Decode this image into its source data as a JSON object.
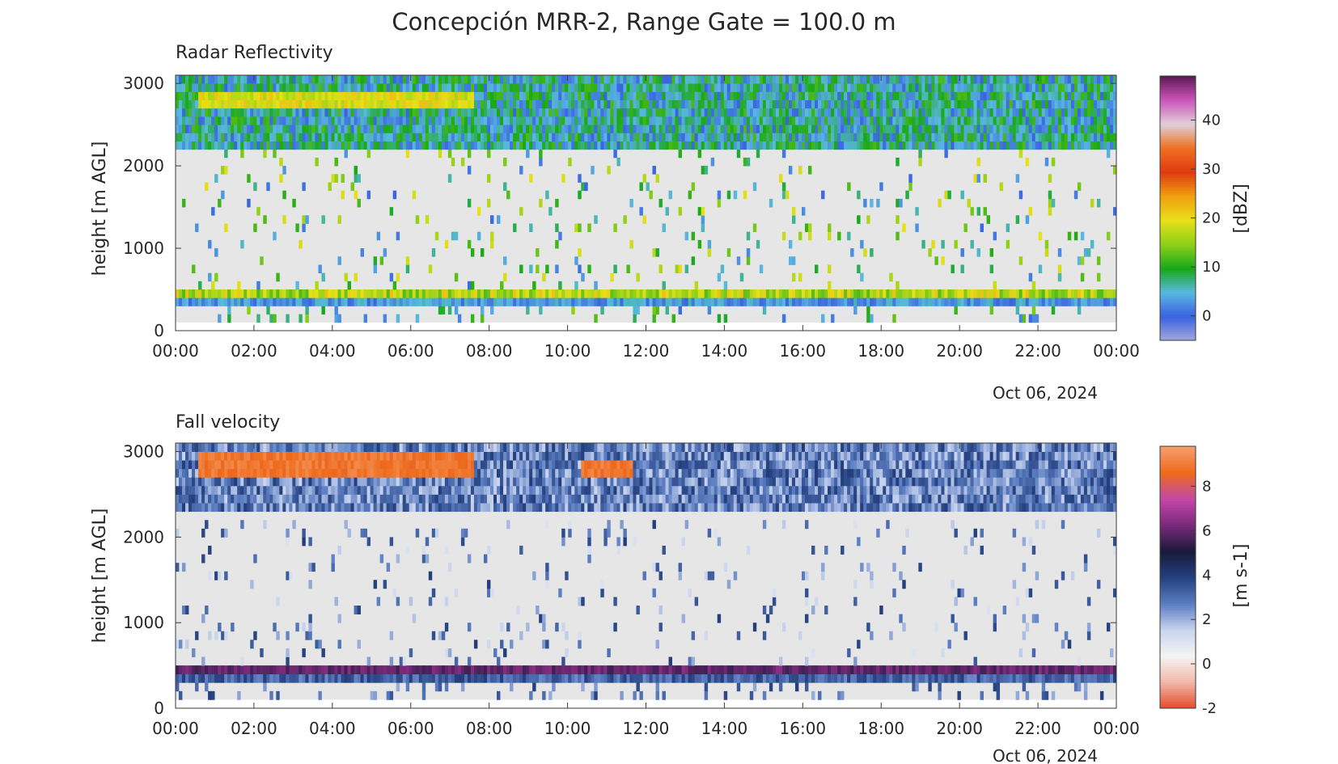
{
  "figure": {
    "title": "Concepción MRR-2, Range Gate = 100.0 m"
  },
  "chart_data": [
    {
      "type": "heatmap",
      "title": "Radar Reflectivity",
      "xlabel": "",
      "ylabel": "height [m AGL]",
      "x_tick_labels": [
        "00:00",
        "02:00",
        "04:00",
        "06:00",
        "08:00",
        "10:00",
        "12:00",
        "14:00",
        "16:00",
        "18:00",
        "20:00",
        "22:00",
        "00:00"
      ],
      "date_label": "Oct 06, 2024",
      "xlim_hours": [
        0,
        24
      ],
      "y_ticks": [
        0,
        1000,
        2000,
        3000
      ],
      "ylim": [
        0,
        3100
      ],
      "data_height_range": [
        100,
        3100
      ],
      "colorbar": {
        "label": "[dBZ]",
        "ticks": [
          0,
          10,
          20,
          30,
          40
        ],
        "range": [
          -5,
          49
        ],
        "colormap": "reflectivity",
        "colors": [
          "#a3a8dc",
          "#3a62e0",
          "#59b8e0",
          "#18a818",
          "#8ed018",
          "#e8e018",
          "#f0a010",
          "#e03a10",
          "#ee6f20",
          "#e0d0d8",
          "#cc55bb",
          "#5c1a56"
        ]
      },
      "layers": [
        {
          "name": "melting-layer band",
          "height_range": [
            400,
            500
          ],
          "hours": [
            0,
            24
          ],
          "dbz_range": [
            12,
            22
          ]
        },
        {
          "name": "band below melting layer",
          "height_range": [
            300,
            400
          ],
          "hours": [
            0,
            24
          ],
          "dbz_range": [
            0,
            6
          ]
        },
        {
          "name": "top bright band",
          "height_range": [
            2700,
            2900
          ],
          "hours": [
            0.5,
            7.6
          ],
          "dbz_range": [
            16,
            22
          ]
        },
        {
          "name": "top layer",
          "height_range": [
            2200,
            3100
          ],
          "hours": [
            0,
            24
          ],
          "dbz_range": [
            0,
            12
          ]
        }
      ]
    },
    {
      "type": "heatmap",
      "title": "Fall velocity",
      "xlabel": "",
      "ylabel": "height [m AGL]",
      "x_tick_labels": [
        "00:00",
        "02:00",
        "04:00",
        "06:00",
        "08:00",
        "10:00",
        "12:00",
        "14:00",
        "16:00",
        "18:00",
        "20:00",
        "22:00",
        "00:00"
      ],
      "date_label": "Oct 06, 2024",
      "xlim_hours": [
        0,
        24
      ],
      "y_ticks": [
        0,
        1000,
        2000,
        3000
      ],
      "ylim": [
        0,
        3100
      ],
      "data_height_range": [
        100,
        3100
      ],
      "colorbar": {
        "label": "[m s-1]",
        "ticks": [
          -2,
          0,
          2,
          4,
          6,
          8
        ],
        "range": [
          -2,
          9.8
        ],
        "colormap": "velocity",
        "colors": [
          "#e54a2a",
          "#f2b8a8",
          "#f4f4f4",
          "#c8d4ee",
          "#5a7cc0",
          "#24407e",
          "#1a1a3a",
          "#7a2a7a",
          "#c448a8",
          "#ee6a1a",
          "#f5a070"
        ]
      },
      "layers": [
        {
          "name": "melting-layer band",
          "height_range": [
            400,
            500
          ],
          "hours": [
            0,
            24
          ],
          "velocity_range": [
            5.5,
            6.5
          ]
        },
        {
          "name": "band below melting layer",
          "height_range": [
            300,
            400
          ],
          "hours": [
            0,
            24
          ],
          "velocity_range": [
            2.5,
            4
          ]
        },
        {
          "name": "top bright band",
          "height_range": [
            2700,
            3000
          ],
          "hours": [
            0.5,
            7.6
          ],
          "velocity_range": [
            8.5,
            9.3
          ]
        },
        {
          "name": "top bright band 2",
          "height_range": [
            2700,
            2900
          ],
          "hours": [
            10.3,
            11.6
          ],
          "velocity_range": [
            8.5,
            9.3
          ]
        },
        {
          "name": "top layer",
          "height_range": [
            2300,
            3100
          ],
          "hours": [
            0,
            24
          ],
          "velocity_range": [
            1.5,
            4
          ]
        }
      ]
    }
  ]
}
